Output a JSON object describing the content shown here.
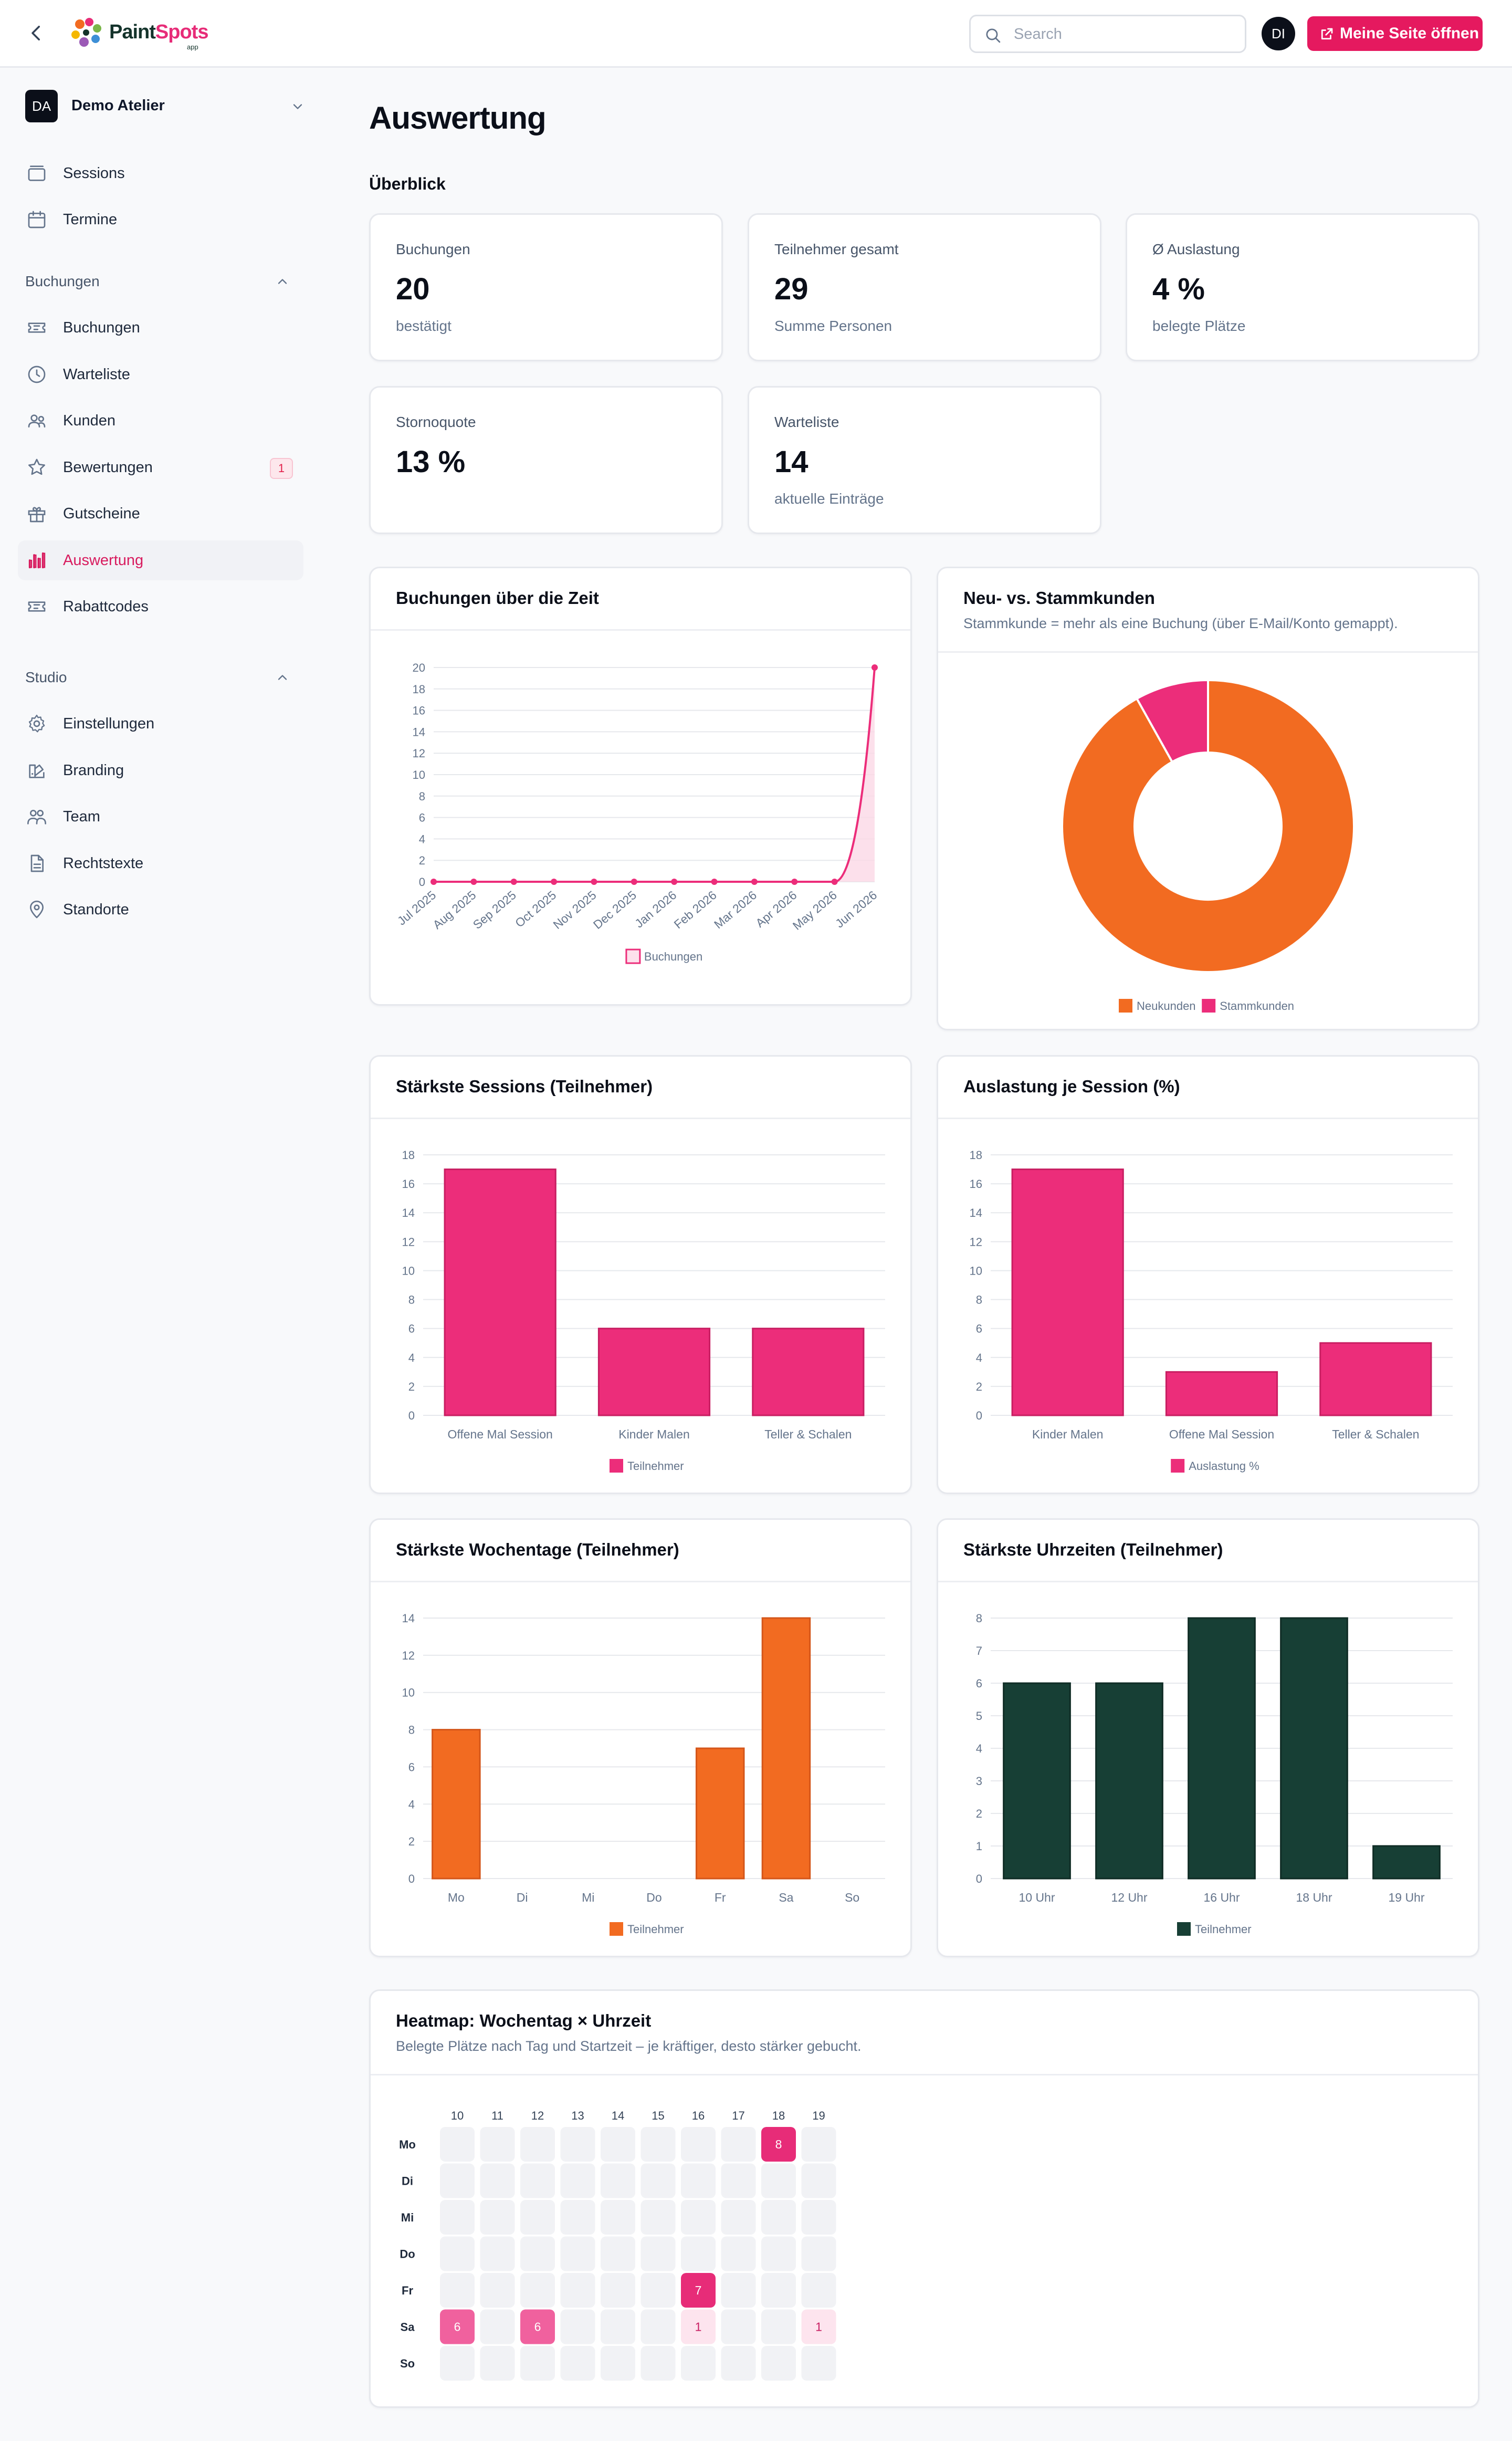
{
  "header": {
    "logo": {
      "paint": "Paint",
      "spots": "Spots",
      "sub": "app"
    },
    "search_placeholder": "Search",
    "avatar": "DI",
    "open_button": "Meine Seite öffnen"
  },
  "sidebar": {
    "org_avatar": "DA",
    "org_name": "Demo Atelier",
    "top_items": [
      {
        "label": "Sessions",
        "icon": "layers-icon"
      },
      {
        "label": "Termine",
        "icon": "calendar-icon"
      }
    ],
    "sections": [
      {
        "label": "Buchungen",
        "items": [
          {
            "label": "Buchungen",
            "icon": "ticket-icon"
          },
          {
            "label": "Warteliste",
            "icon": "clock-icon"
          },
          {
            "label": "Kunden",
            "icon": "users-icon"
          },
          {
            "label": "Bewertungen",
            "icon": "star-icon",
            "badge": "1"
          },
          {
            "label": "Gutscheine",
            "icon": "gift-icon"
          },
          {
            "label": "Auswertung",
            "icon": "bar-chart-icon",
            "active": true
          },
          {
            "label": "Rabattcodes",
            "icon": "ticket-icon"
          }
        ]
      },
      {
        "label": "Studio",
        "items": [
          {
            "label": "Einstellungen",
            "icon": "gear-icon"
          },
          {
            "label": "Branding",
            "icon": "palette-icon"
          },
          {
            "label": "Team",
            "icon": "team-icon"
          },
          {
            "label": "Rechtstexte",
            "icon": "document-icon"
          },
          {
            "label": "Standorte",
            "icon": "map-pin-icon"
          }
        ]
      }
    ]
  },
  "page": {
    "title": "Auswertung",
    "overview_title": "Überblick"
  },
  "stats": [
    {
      "label": "Buchungen",
      "value": "20",
      "sub": "bestätigt"
    },
    {
      "label": "Teilnehmer gesamt",
      "value": "29",
      "sub": "Summe Personen"
    },
    {
      "label": "Ø Auslastung",
      "value": "4 %",
      "sub": "belegte Plätze"
    },
    {
      "label": "Stornoquote",
      "value": "13 %",
      "sub": ""
    },
    {
      "label": "Warteliste",
      "value": "14",
      "sub": "aktuelle Einträge"
    }
  ],
  "colors": {
    "pink": "#ec2d7a",
    "orange": "#f26b21",
    "green": "#173f35",
    "accent": "#e5195f"
  },
  "chart_data": [
    {
      "id": "timeline",
      "type": "line",
      "title": "Buchungen über die Zeit",
      "categories": [
        "Jul 2025",
        "Aug 2025",
        "Sep 2025",
        "Oct 2025",
        "Nov 2025",
        "Dec 2025",
        "Jan 2026",
        "Feb 2026",
        "Mar 2026",
        "Apr 2026",
        "May 2026",
        "Jun 2026"
      ],
      "series": [
        {
          "name": "Buchungen",
          "values": [
            0,
            0,
            0,
            0,
            0,
            0,
            0,
            0,
            0,
            0,
            0,
            20
          ]
        }
      ],
      "ylim": [
        0,
        20
      ],
      "yticks": [
        0,
        2,
        4,
        6,
        8,
        10,
        12,
        14,
        16,
        18,
        20
      ],
      "grid": true,
      "legend": "bottom"
    },
    {
      "id": "new_vs_returning",
      "type": "pie",
      "title": "Neu- vs. Stammkunden",
      "subtitle": "Stammkunde = mehr als eine Buchung (über E-Mail/Konto gemappt).",
      "slices": [
        {
          "label": "Neukunden",
          "value": 17,
          "color": "#f26b21"
        },
        {
          "label": "Stammkunden",
          "value": 1.5,
          "color": "#ec2d7a"
        }
      ],
      "legend": "bottom"
    },
    {
      "id": "top_sessions",
      "type": "bar",
      "title": "Stärkste Sessions (Teilnehmer)",
      "categories": [
        "Offene Mal Session",
        "Kinder Malen",
        "Teller & Schalen"
      ],
      "series": [
        {
          "name": "Teilnehmer",
          "values": [
            17,
            6,
            6
          ]
        }
      ],
      "ylim": [
        0,
        18
      ],
      "yticks": [
        0,
        2,
        4,
        6,
        8,
        10,
        12,
        14,
        16,
        18
      ],
      "grid": true,
      "legend": "bottom"
    },
    {
      "id": "utilization",
      "type": "bar",
      "title": "Auslastung je Session (%)",
      "categories": [
        "Kinder Malen",
        "Offene Mal Session",
        "Teller & Schalen"
      ],
      "series": [
        {
          "name": "Auslastung %",
          "values": [
            17,
            3,
            5
          ]
        }
      ],
      "ylim": [
        0,
        18
      ],
      "yticks": [
        0,
        2,
        4,
        6,
        8,
        10,
        12,
        14,
        16,
        18
      ],
      "grid": true,
      "legend": "bottom"
    },
    {
      "id": "weekdays",
      "type": "bar",
      "title": "Stärkste Wochentage (Teilnehmer)",
      "categories": [
        "Mo",
        "Di",
        "Mi",
        "Do",
        "Fr",
        "Sa",
        "So"
      ],
      "series": [
        {
          "name": "Teilnehmer",
          "values": [
            8,
            0,
            0,
            0,
            7,
            14,
            0
          ]
        }
      ],
      "ylim": [
        0,
        14
      ],
      "yticks": [
        0,
        2,
        4,
        6,
        8,
        10,
        12,
        14
      ],
      "grid": true,
      "legend": "bottom"
    },
    {
      "id": "hours",
      "type": "bar",
      "title": "Stärkste Uhrzeiten (Teilnehmer)",
      "categories": [
        "10 Uhr",
        "12 Uhr",
        "16 Uhr",
        "18 Uhr",
        "19 Uhr"
      ],
      "series": [
        {
          "name": "Teilnehmer",
          "values": [
            6,
            6,
            8,
            8,
            1
          ]
        }
      ],
      "ylim": [
        0,
        8
      ],
      "yticks": [
        0,
        1,
        2,
        3,
        4,
        5,
        6,
        7,
        8
      ],
      "grid": true,
      "legend": "bottom"
    },
    {
      "id": "heatmap",
      "type": "heatmap",
      "title": "Heatmap: Wochentag × Uhrzeit",
      "subtitle": "Belegte Plätze nach Tag und Startzeit – je kräftiger, desto stärker gebucht.",
      "x": [
        "10",
        "11",
        "12",
        "13",
        "14",
        "15",
        "16",
        "17",
        "18",
        "19"
      ],
      "y": [
        "Mo",
        "Di",
        "Mi",
        "Do",
        "Fr",
        "Sa",
        "So"
      ],
      "values": [
        [
          0,
          0,
          0,
          0,
          0,
          0,
          0,
          0,
          8,
          0
        ],
        [
          0,
          0,
          0,
          0,
          0,
          0,
          0,
          0,
          0,
          0
        ],
        [
          0,
          0,
          0,
          0,
          0,
          0,
          0,
          0,
          0,
          0
        ],
        [
          0,
          0,
          0,
          0,
          0,
          0,
          0,
          0,
          0,
          0
        ],
        [
          0,
          0,
          0,
          0,
          0,
          0,
          7,
          0,
          0,
          0
        ],
        [
          6,
          0,
          6,
          0,
          0,
          0,
          1,
          0,
          0,
          1
        ],
        [
          0,
          0,
          0,
          0,
          0,
          0,
          0,
          0,
          0,
          0
        ]
      ]
    }
  ]
}
